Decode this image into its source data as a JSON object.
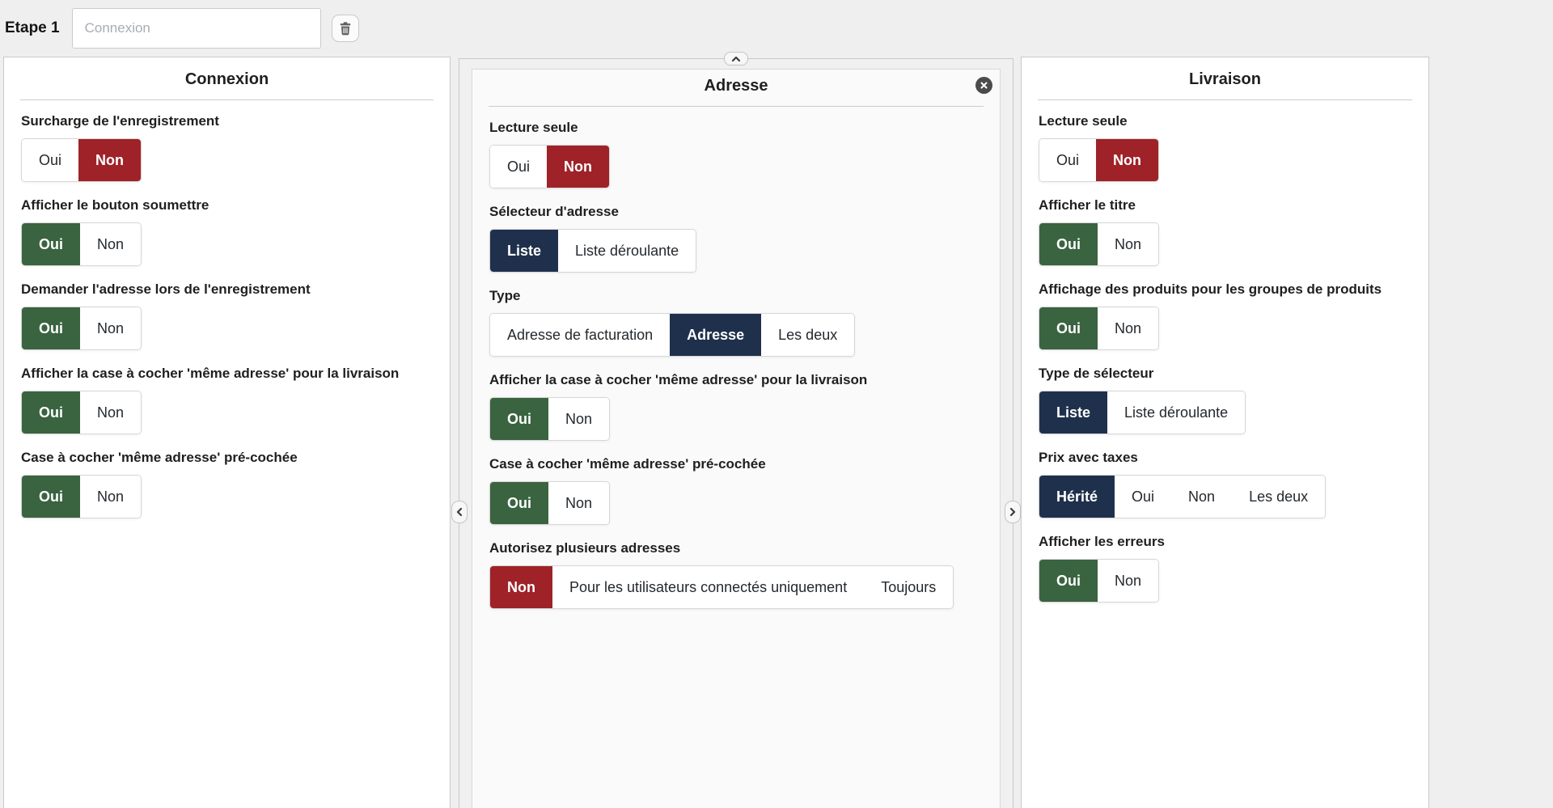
{
  "colors": {
    "red": "#9e2227",
    "green": "#3a6340",
    "navy": "#1f304c",
    "page_background": "#efefef"
  },
  "topbar": {
    "step_label": "Etape 1",
    "input_value": "",
    "input_placeholder": "Connexion",
    "delete_icon": "trash-icon"
  },
  "handles": {
    "collapse_icon": "chevron-up-icon",
    "move_left_icon": "chevron-left-icon",
    "move_right_icon": "chevron-right-icon",
    "close_icon": "close-icon"
  },
  "panels": [
    {
      "id": "connexion",
      "title": "Connexion",
      "active": false,
      "fields": [
        {
          "label": "Surcharge de l'enregistrement",
          "options": [
            "Oui",
            "Non"
          ],
          "selected": "Non",
          "selected_color": "red"
        },
        {
          "label": "Afficher le bouton soumettre",
          "options": [
            "Oui",
            "Non"
          ],
          "selected": "Oui",
          "selected_color": "green"
        },
        {
          "label": "Demander l'adresse lors de l'enregistrement",
          "options": [
            "Oui",
            "Non"
          ],
          "selected": "Oui",
          "selected_color": "green"
        },
        {
          "label": "Afficher la case à cocher 'même adresse' pour la livraison",
          "options": [
            "Oui",
            "Non"
          ],
          "selected": "Oui",
          "selected_color": "green"
        },
        {
          "label": "Case à cocher 'même adresse' pré-cochée",
          "options": [
            "Oui",
            "Non"
          ],
          "selected": "Oui",
          "selected_color": "green"
        }
      ]
    },
    {
      "id": "adresse",
      "title": "Adresse",
      "active": true,
      "fields": [
        {
          "label": "Lecture seule",
          "options": [
            "Oui",
            "Non"
          ],
          "selected": "Non",
          "selected_color": "red"
        },
        {
          "label": "Sélecteur d'adresse",
          "options": [
            "Liste",
            "Liste déroulante"
          ],
          "selected": "Liste",
          "selected_color": "navy"
        },
        {
          "label": "Type",
          "options": [
            "Adresse de facturation",
            "Adresse",
            "Les deux"
          ],
          "selected": "Adresse",
          "selected_color": "navy"
        },
        {
          "label": "Afficher la case à cocher 'même adresse' pour la livraison",
          "options": [
            "Oui",
            "Non"
          ],
          "selected": "Oui",
          "selected_color": "green"
        },
        {
          "label": "Case à cocher 'même adresse' pré-cochée",
          "options": [
            "Oui",
            "Non"
          ],
          "selected": "Oui",
          "selected_color": "green"
        },
        {
          "label": "Autorisez plusieurs adresses",
          "options": [
            "Non",
            "Pour les utilisateurs connectés uniquement",
            "Toujours"
          ],
          "selected": "Non",
          "selected_color": "red"
        }
      ]
    },
    {
      "id": "livraison",
      "title": "Livraison",
      "active": false,
      "fields": [
        {
          "label": "Lecture seule",
          "options": [
            "Oui",
            "Non"
          ],
          "selected": "Non",
          "selected_color": "red"
        },
        {
          "label": "Afficher le titre",
          "options": [
            "Oui",
            "Non"
          ],
          "selected": "Oui",
          "selected_color": "green"
        },
        {
          "label": "Affichage des produits pour les groupes de produits",
          "options": [
            "Oui",
            "Non"
          ],
          "selected": "Oui",
          "selected_color": "green"
        },
        {
          "label": "Type de sélecteur",
          "options": [
            "Liste",
            "Liste déroulante"
          ],
          "selected": "Liste",
          "selected_color": "navy"
        },
        {
          "label": "Prix avec taxes",
          "options": [
            "Hérité",
            "Oui",
            "Non",
            "Les deux"
          ],
          "selected": "Hérité",
          "selected_color": "navy"
        },
        {
          "label": "Afficher les erreurs",
          "options": [
            "Oui",
            "Non"
          ],
          "selected": "Oui",
          "selected_color": "green"
        }
      ]
    }
  ]
}
